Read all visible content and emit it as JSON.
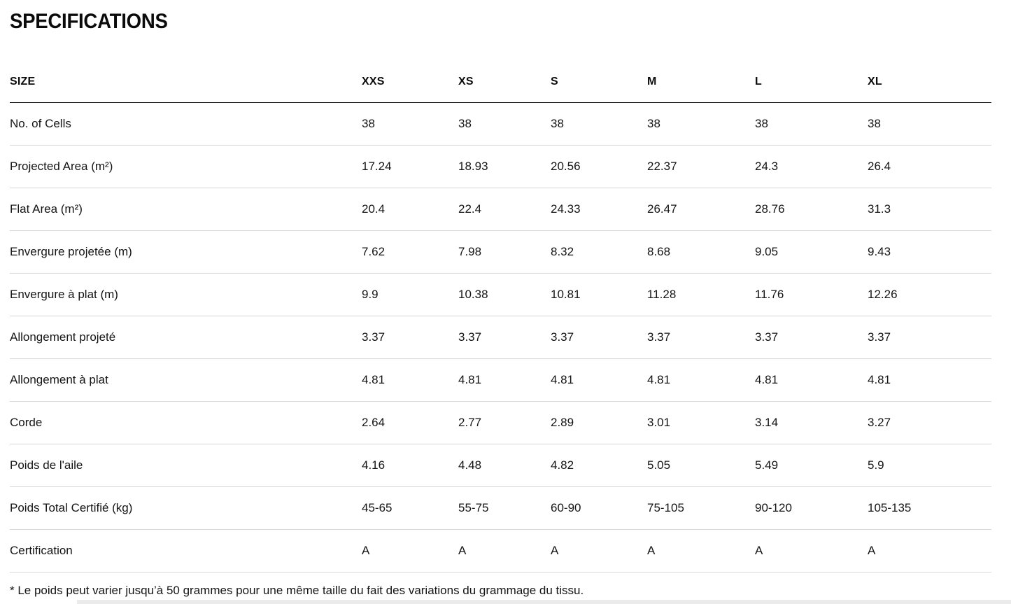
{
  "page": {
    "title": "SPECIFICATIONS",
    "footnote": "* Le poids peut varier jusqu’à 50 grammes pour une même taille du fait des variations du grammage du tissu."
  },
  "table": {
    "header": [
      "SIZE",
      "XXS",
      "XS",
      "S",
      "M",
      "L",
      "XL"
    ],
    "rows": [
      {
        "label": "No. of Cells",
        "values": [
          "38",
          "38",
          "38",
          "38",
          "38",
          "38"
        ]
      },
      {
        "label": "Projected Area (m²)",
        "values": [
          "17.24",
          "18.93",
          "20.56",
          "22.37",
          "24.3",
          "26.4"
        ]
      },
      {
        "label": "Flat Area (m²)",
        "values": [
          "20.4",
          "22.4",
          "24.33",
          "26.47",
          "28.76",
          "31.3"
        ]
      },
      {
        "label": "Envergure projetée (m)",
        "values": [
          "7.62",
          "7.98",
          "8.32",
          "8.68",
          "9.05",
          "9.43"
        ]
      },
      {
        "label": "Envergure à plat (m)",
        "values": [
          "9.9",
          "10.38",
          "10.81",
          "11.28",
          "11.76",
          "12.26"
        ]
      },
      {
        "label": "Allongement projeté",
        "values": [
          "3.37",
          "3.37",
          "3.37",
          "3.37",
          "3.37",
          "3.37"
        ]
      },
      {
        "label": "Allongement à plat",
        "values": [
          "4.81",
          "4.81",
          "4.81",
          "4.81",
          "4.81",
          "4.81"
        ]
      },
      {
        "label": "Corde",
        "values": [
          "2.64",
          "2.77",
          "2.89",
          "3.01",
          "3.14",
          "3.27"
        ]
      },
      {
        "label": "Poids de l'aile",
        "values": [
          "4.16",
          "4.48",
          "4.82",
          "5.05",
          "5.49",
          "5.9"
        ]
      },
      {
        "label": "Poids Total Certifié (kg)",
        "values": [
          "45-65",
          "55-75",
          "60-90",
          "75-105",
          "90-120",
          "105-135"
        ]
      },
      {
        "label": "Certification",
        "values": [
          "A",
          "A",
          "A",
          "A",
          "A",
          "A"
        ]
      }
    ]
  }
}
